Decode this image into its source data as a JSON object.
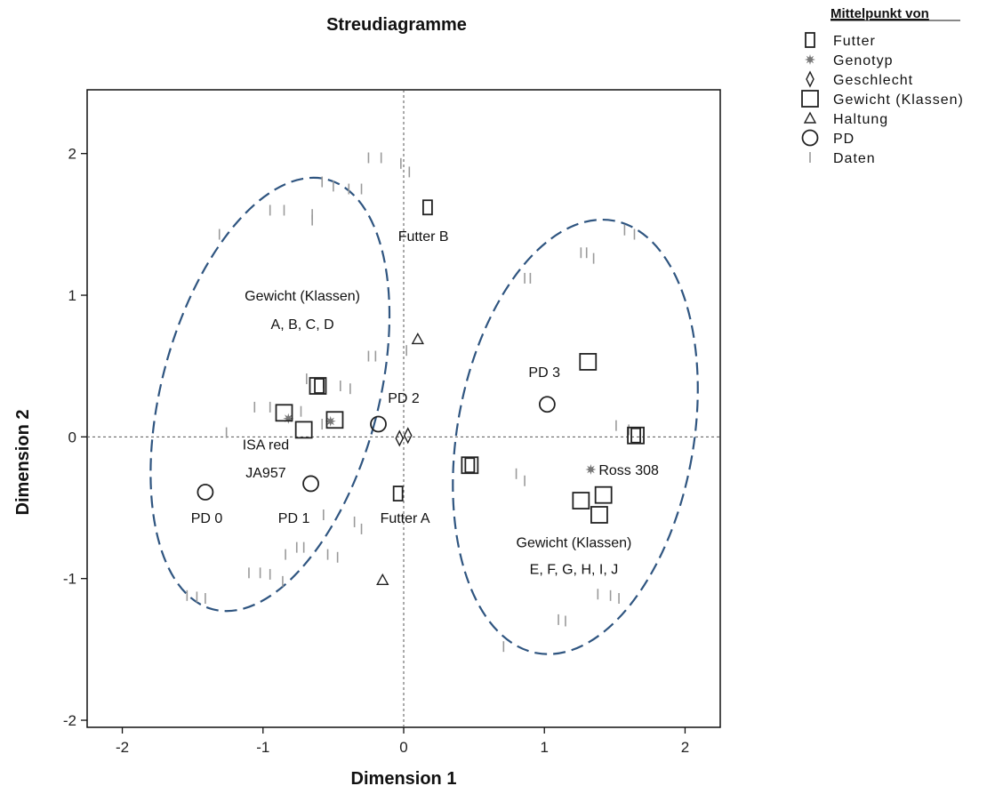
{
  "chart_data": {
    "type": "scatter",
    "title": "Streudiagramme",
    "xlabel": "Dimension 1",
    "ylabel": "Dimension 2",
    "xlim": [
      -2.25,
      2.25
    ],
    "ylim": [
      -2.05,
      2.45
    ],
    "xticks": [
      -2,
      -1,
      0,
      1,
      2
    ],
    "yticks": [
      -2,
      -1,
      0,
      1,
      2
    ],
    "x_tick_labels": [
      "-2",
      "-1",
      "0",
      "1",
      "2"
    ],
    "y_tick_labels": [
      "-2",
      "-1",
      "0",
      "1",
      "2"
    ],
    "reference_lines": {
      "x": 0,
      "y": 0
    },
    "legend": {
      "placement": "top-right, outside plot",
      "heading": "Mittelpunkt von",
      "entries": [
        {
          "label": "Futter",
          "marker": "tall-rect"
        },
        {
          "label": "Genotyp",
          "marker": "star"
        },
        {
          "label": "Geschlecht",
          "marker": "diamond"
        },
        {
          "label": "Gewicht (Klassen)",
          "marker": "square"
        },
        {
          "label": "Haltung",
          "marker": "triangle"
        },
        {
          "label": "PD",
          "marker": "circle"
        },
        {
          "label": "Daten",
          "marker": "tick"
        }
      ]
    },
    "series": [
      {
        "name": "Futter",
        "marker": "tall-rect",
        "points": [
          [
            0.17,
            1.62
          ],
          [
            -0.04,
            -0.4
          ],
          [
            0.47,
            -0.2
          ],
          [
            1.65,
            0.01
          ],
          [
            -0.6,
            0.36
          ]
        ]
      },
      {
        "name": "Genotyp",
        "marker": "star",
        "points": [
          [
            -0.82,
            0.13
          ],
          [
            -0.52,
            0.11
          ],
          [
            1.33,
            -0.23
          ]
        ]
      },
      {
        "name": "Geschlecht",
        "marker": "diamond",
        "points": [
          [
            -0.03,
            -0.01
          ],
          [
            0.03,
            0.01
          ]
        ]
      },
      {
        "name": "Gewicht (Klassen)",
        "marker": "square",
        "points": [
          [
            -0.85,
            0.17
          ],
          [
            -0.71,
            0.05
          ],
          [
            -0.49,
            0.12
          ],
          [
            -0.61,
            0.36
          ],
          [
            1.31,
            0.53
          ],
          [
            1.65,
            0.01
          ],
          [
            0.47,
            -0.2
          ],
          [
            1.26,
            -0.45
          ],
          [
            1.42,
            -0.41
          ],
          [
            1.39,
            -0.55
          ]
        ]
      },
      {
        "name": "Haltung",
        "marker": "triangle",
        "points": [
          [
            0.1,
            0.69
          ],
          [
            -0.15,
            -1.01
          ]
        ]
      },
      {
        "name": "PD",
        "marker": "circle",
        "points": [
          [
            -1.41,
            -0.39
          ],
          [
            -0.66,
            -0.33
          ],
          [
            -0.18,
            0.09
          ],
          [
            1.02,
            0.23
          ]
        ]
      },
      {
        "name": "Daten",
        "marker": "tick",
        "points": [
          [
            -0.25,
            1.97
          ],
          [
            -0.16,
            1.97
          ],
          [
            -0.02,
            1.93
          ],
          [
            0.04,
            1.87
          ],
          [
            -0.58,
            1.8
          ],
          [
            -0.5,
            1.77
          ],
          [
            -0.39,
            1.75
          ],
          [
            -0.3,
            1.75
          ],
          [
            -0.95,
            1.6
          ],
          [
            -0.85,
            1.6
          ],
          [
            -0.65,
            1.57
          ],
          [
            -0.65,
            1.53
          ],
          [
            -1.31,
            1.43
          ],
          [
            1.57,
            1.46
          ],
          [
            1.64,
            1.43
          ],
          [
            1.3,
            1.3
          ],
          [
            1.26,
            1.3
          ],
          [
            1.35,
            1.26
          ],
          [
            0.9,
            1.12
          ],
          [
            0.86,
            1.12
          ],
          [
            0.02,
            0.61
          ],
          [
            -0.25,
            0.57
          ],
          [
            -0.2,
            0.57
          ],
          [
            -0.69,
            0.41
          ],
          [
            -0.57,
            0.38
          ],
          [
            -0.45,
            0.36
          ],
          [
            -0.38,
            0.34
          ],
          [
            -1.06,
            0.21
          ],
          [
            -0.95,
            0.21
          ],
          [
            -0.73,
            0.18
          ],
          [
            -0.58,
            0.09
          ],
          [
            -1.26,
            0.03
          ],
          [
            1.51,
            0.08
          ],
          [
            1.6,
            0.05
          ],
          [
            0.8,
            -0.26
          ],
          [
            0.86,
            -0.31
          ],
          [
            -0.57,
            -0.55
          ],
          [
            -0.35,
            -0.6
          ],
          [
            -0.3,
            -0.65
          ],
          [
            -0.76,
            -0.78
          ],
          [
            -0.84,
            -0.83
          ],
          [
            -0.54,
            -0.83
          ],
          [
            -0.47,
            -0.85
          ],
          [
            -0.71,
            -0.78
          ],
          [
            -1.1,
            -0.96
          ],
          [
            -1.02,
            -0.96
          ],
          [
            -0.95,
            -0.97
          ],
          [
            -0.86,
            -1.02
          ],
          [
            -1.54,
            -1.12
          ],
          [
            -1.47,
            -1.13
          ],
          [
            -1.41,
            -1.14
          ],
          [
            1.53,
            -1.14
          ],
          [
            1.47,
            -1.12
          ],
          [
            1.38,
            -1.11
          ],
          [
            1.1,
            -1.29
          ],
          [
            1.15,
            -1.3
          ],
          [
            0.71,
            -1.48
          ]
        ]
      }
    ],
    "annotations": [
      {
        "text": "Futter B",
        "x": 0.14,
        "y": 1.42
      },
      {
        "text": "Futter A",
        "x": 0.01,
        "y": -0.57
      },
      {
        "text": "Gewicht (Klassen)",
        "x": -0.72,
        "y": 1.0
      },
      {
        "text": "A,  B, C, D",
        "x": -0.72,
        "y": 0.8
      },
      {
        "text": "PD 2",
        "x": 0.0,
        "y": 0.28
      },
      {
        "text": "PD 3",
        "x": 1.0,
        "y": 0.46
      },
      {
        "text": "ISA red",
        "x": -0.98,
        "y": -0.05
      },
      {
        "text": "JA957",
        "x": -0.98,
        "y": -0.25
      },
      {
        "text": "PD 0",
        "x": -1.4,
        "y": -0.57
      },
      {
        "text": "PD 1",
        "x": -0.78,
        "y": -0.57
      },
      {
        "text": "Ross 308",
        "x": 1.6,
        "y": -0.23
      },
      {
        "text": "Gewicht (Klassen)",
        "x": 1.21,
        "y": -0.74
      },
      {
        "text": "E,  F, G, H, I, J",
        "x": 1.21,
        "y": -0.93
      }
    ],
    "ellipses": [
      {
        "cx": -0.95,
        "cy": 0.3,
        "rx": 0.77,
        "ry": 1.57,
        "rotate_deg": 15
      },
      {
        "cx": 1.22,
        "cy": 0.0,
        "rx": 0.84,
        "ry": 1.55,
        "rotate_deg": 10
      }
    ]
  }
}
